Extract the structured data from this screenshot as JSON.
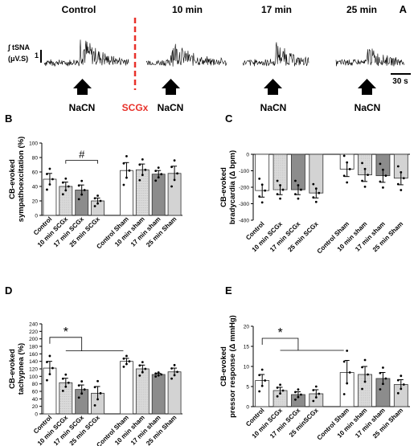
{
  "panel_a": {
    "label": "A",
    "conditions": [
      "Control",
      "10 min",
      "17 min",
      "25 min"
    ],
    "stimulus": "NaCN",
    "intervention": "SCGx",
    "ylabel_line1": "∫ tSNA",
    "ylabel_line2": "(μV.S)",
    "scale_y": "1",
    "scale_x": "30 s"
  },
  "colors": {
    "control": "#ffffff",
    "min10": "#d9d9d9",
    "min17": "#8c8c8c",
    "min25": "#d3d3d3",
    "edge": "#333333",
    "red": "#e8312a"
  },
  "chart_data": [
    {
      "panel": "B",
      "type": "bar",
      "ylabel": "CB-evoked sympathoexcitation (%)",
      "ylim": [
        0,
        100
      ],
      "yticks": [
        "0",
        "20",
        "40",
        "60",
        "80",
        "100"
      ],
      "categories": [
        "Control",
        "10 min SCGx",
        "17 min SCGx",
        "25 min SCGx",
        "Control Sham",
        "10 min sham",
        "17 min sham",
        "25 min Sham"
      ],
      "values": [
        50,
        40,
        35,
        20,
        62,
        63,
        57,
        58
      ],
      "errors": [
        8,
        6,
        7,
        4,
        11,
        8,
        5,
        10
      ],
      "annotation": "#"
    },
    {
      "panel": "C",
      "type": "bar",
      "ylabel": "CB-evoked bradycardia (Δ bpm)",
      "ylim": [
        -400,
        0
      ],
      "yticks": [
        "0",
        "-100",
        "-200",
        "-300",
        "-400"
      ],
      "categories": [
        "Control",
        "10 min SCGx",
        "17 min SCGx",
        "25 min SCGx",
        "Control Sham",
        "10 min sham",
        "17 min sham",
        "25 min Sham"
      ],
      "values": [
        -220,
        -215,
        -215,
        -235,
        -90,
        -125,
        -130,
        -145
      ],
      "errors": [
        40,
        30,
        30,
        30,
        45,
        40,
        40,
        40
      ],
      "annotation": ""
    },
    {
      "panel": "D",
      "type": "bar",
      "ylabel": "CB-evoked tachypnea (%)",
      "ylim": [
        0,
        240
      ],
      "yticks": [
        "0",
        "20",
        "40",
        "60",
        "80",
        "100",
        "120",
        "140",
        "160",
        "180",
        "200",
        "220",
        "240"
      ],
      "categories": [
        "Control",
        "10 min SCGx",
        "17 min SCGx",
        "25 min SCGx",
        "Control Sham",
        "10 min sham",
        "17 min sham",
        "25 min Sham"
      ],
      "values": [
        122,
        83,
        65,
        55,
        140,
        120,
        105,
        112
      ],
      "errors": [
        18,
        12,
        12,
        18,
        8,
        10,
        3,
        10
      ],
      "annotation": "*"
    },
    {
      "panel": "E",
      "type": "bar",
      "ylabel": "CB-evoked pressor response (Δ mmHg)",
      "ylim": [
        0,
        20
      ],
      "yticks": [
        "0",
        "5",
        "10",
        "15",
        "20"
      ],
      "categories": [
        "Control",
        "10 min SCGx",
        "17 min SCGx",
        "25 minSCGx",
        "Control Sham",
        "10 min sham",
        "17 min sham",
        "25 min Sham"
      ],
      "values": [
        6.5,
        4,
        3,
        3.2,
        8.5,
        8,
        7,
        5.5
      ],
      "errors": [
        1.5,
        0.8,
        0.7,
        1,
        3,
        2,
        1.5,
        1.2
      ],
      "annotation": "*"
    }
  ]
}
